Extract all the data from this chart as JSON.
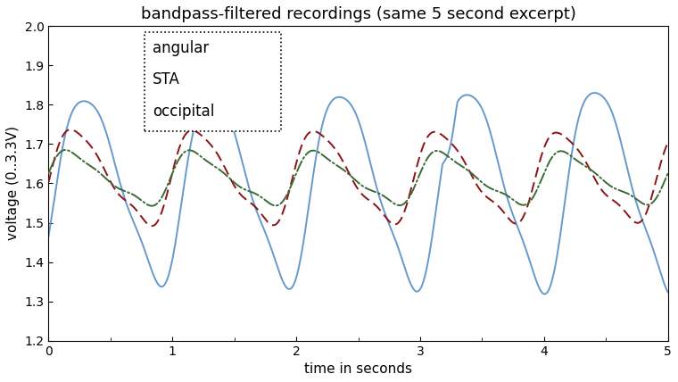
{
  "title": "bandpass-filtered recordings (same 5 second excerpt)",
  "xlabel": "time in seconds",
  "ylabel": "voltage (0..3.3V)",
  "xlim": [
    0,
    5
  ],
  "ylim": [
    1.2,
    2.0
  ],
  "yticks": [
    1.2,
    1.3,
    1.4,
    1.5,
    1.6,
    1.7,
    1.8,
    1.9,
    2.0
  ],
  "xticks": [
    0,
    1,
    2,
    3,
    4,
    5
  ],
  "legend_labels": [
    "angular",
    "STA",
    "occipital"
  ],
  "colors": {
    "angular": "#6699cc",
    "STA": "#8b1414",
    "occipital": "#3a6b35"
  },
  "background": "#ffffff",
  "title_fontsize": 13,
  "label_fontsize": 11,
  "tick_fontsize": 10
}
